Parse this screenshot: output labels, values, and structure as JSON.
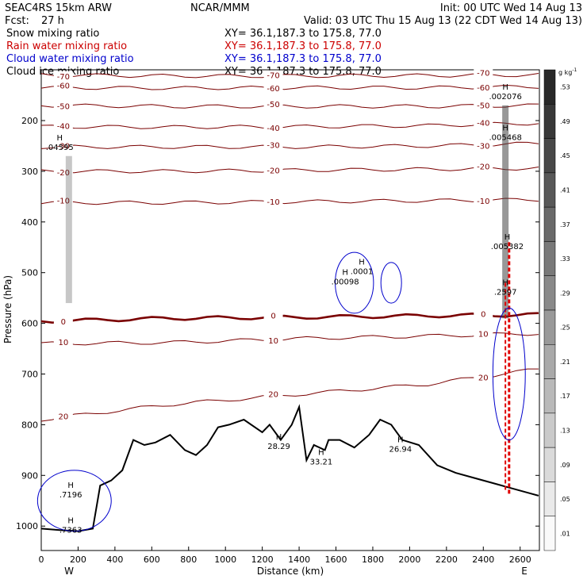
{
  "header": {
    "model": "SEAC4RS 15km ARW",
    "center": "NCAR/MMM",
    "init": "Init: 00 UTC Wed 14 Aug 13",
    "fcst_label": "Fcst:",
    "fcst_value": "27 h",
    "valid": "Valid: 03 UTC Thu 15 Aug 13 (22 CDT Wed 14 Aug 13)"
  },
  "legend": [
    {
      "label": "Snow mixing ratio",
      "xy": "XY=  36.1,187.3 to 175.8, 77.0",
      "color": "#000000"
    },
    {
      "label": "Rain water mixing ratio",
      "xy": "XY=  36.1,187.3 to 175.8, 77.0",
      "color": "#cc0000"
    },
    {
      "label": "Cloud water mixing ratio",
      "xy": "XY=  36.1,187.3 to 175.8, 77.0",
      "color": "#0000cc"
    },
    {
      "label": "Cloud ice mixing ratio",
      "xy": "XY=  36.1,187.3 to 175.8, 77.0",
      "color": "#000000"
    }
  ],
  "colorbar": {
    "unit": "g kg",
    "unit_exp": "-1",
    "labels": [
      ".53",
      ".49",
      ".45",
      ".41",
      ".37",
      ".33",
      ".29",
      ".25",
      ".21",
      ".17",
      ".13",
      ".09",
      ".05",
      ".01"
    ]
  },
  "chart_data": {
    "type": "contour",
    "xlabel": "Distance (km)",
    "ylabel": "Pressure (hPa)",
    "xlim": [
      0,
      2700
    ],
    "ylim": [
      1050,
      100
    ],
    "x_ticks": [
      "0",
      "200",
      "400",
      "600",
      "800",
      "1000",
      "1200",
      "1400",
      "1600",
      "1800",
      "2000",
      "2200",
      "2400",
      "2600"
    ],
    "y_ticks": [
      "200",
      "300",
      "400",
      "500",
      "600",
      "700",
      "800",
      "900",
      "1000"
    ],
    "x_end_labels": {
      "left": "W",
      "right": "E"
    },
    "temperature_contours": [
      {
        "value": -70,
        "label": "-70.45",
        "pressure": [
          110,
          112,
          112,
          111,
          110
        ]
      },
      {
        "value": -60,
        "label": "-60",
        "pressure": [
          135,
          136,
          135,
          135,
          133
        ]
      },
      {
        "value": -50,
        "label": "-50",
        "pressure": [
          170,
          172,
          172,
          172,
          170
        ]
      },
      {
        "value": -40,
        "label": "-40",
        "pressure": [
          212,
          213,
          212,
          210,
          205
        ]
      },
      {
        "value": -30,
        "label": "-30",
        "pressure": [
          252,
          252,
          252,
          250,
          245
        ]
      },
      {
        "value": -20,
        "label": "-20",
        "pressure": [
          300,
          300,
          298,
          296,
          294
        ]
      },
      {
        "value": -10,
        "label": "-10",
        "pressure": [
          362,
          362,
          360,
          358,
          356
        ]
      },
      {
        "value": 0,
        "label": "0",
        "pressure": [
          596,
          590,
          588,
          585,
          583
        ],
        "emphasis": true
      },
      {
        "value": 10,
        "label": "10",
        "pressure": [
          640,
          638,
          630,
          625,
          620
        ]
      },
      {
        "value": 20,
        "label": "20",
        "pressure": [
          790,
          760,
          740,
          720,
          690
        ]
      }
    ],
    "terrain": {
      "x": [
        0,
        100,
        200,
        280,
        320,
        380,
        440,
        500,
        560,
        620,
        700,
        780,
        840,
        900,
        960,
        1020,
        1100,
        1200,
        1240,
        1300,
        1360,
        1400,
        1440,
        1480,
        1540,
        1560,
        1620,
        1700,
        1780,
        1840,
        1900,
        1960,
        2050,
        2150,
        2250,
        2350,
        2450,
        2550,
        2650,
        2700
      ],
      "pressure": [
        1005,
        1008,
        1010,
        1005,
        920,
        910,
        890,
        830,
        840,
        835,
        820,
        850,
        860,
        840,
        805,
        800,
        790,
        815,
        800,
        830,
        800,
        765,
        870,
        840,
        850,
        830,
        830,
        845,
        820,
        790,
        800,
        830,
        840,
        880,
        895,
        905,
        915,
        925,
        935,
        940
      ]
    },
    "max_labels": [
      {
        "x": 1290,
        "p": 845,
        "value": "28.29"
      },
      {
        "x": 1520,
        "p": 875,
        "value": "33.21"
      },
      {
        "x": 1950,
        "p": 850,
        "value": "26.94"
      },
      {
        "x": 2520,
        "p": 155,
        "value": ".002076"
      },
      {
        "x": 2520,
        "p": 235,
        "value": ".005468"
      },
      {
        "x": 2530,
        "p": 450,
        "value": ".005382"
      },
      {
        "x": 1650,
        "p": 520,
        "value": ".00098"
      },
      {
        "x": 1740,
        "p": 500,
        "value": ".0001"
      },
      {
        "x": 2520,
        "p": 540,
        "value": ".2597"
      },
      {
        "x": 100,
        "p": 255,
        "value": ".04595"
      },
      {
        "x": 160,
        "p": 940,
        "value": ".7196"
      },
      {
        "x": 160,
        "p": 1010,
        "value": ".7363"
      }
    ]
  }
}
